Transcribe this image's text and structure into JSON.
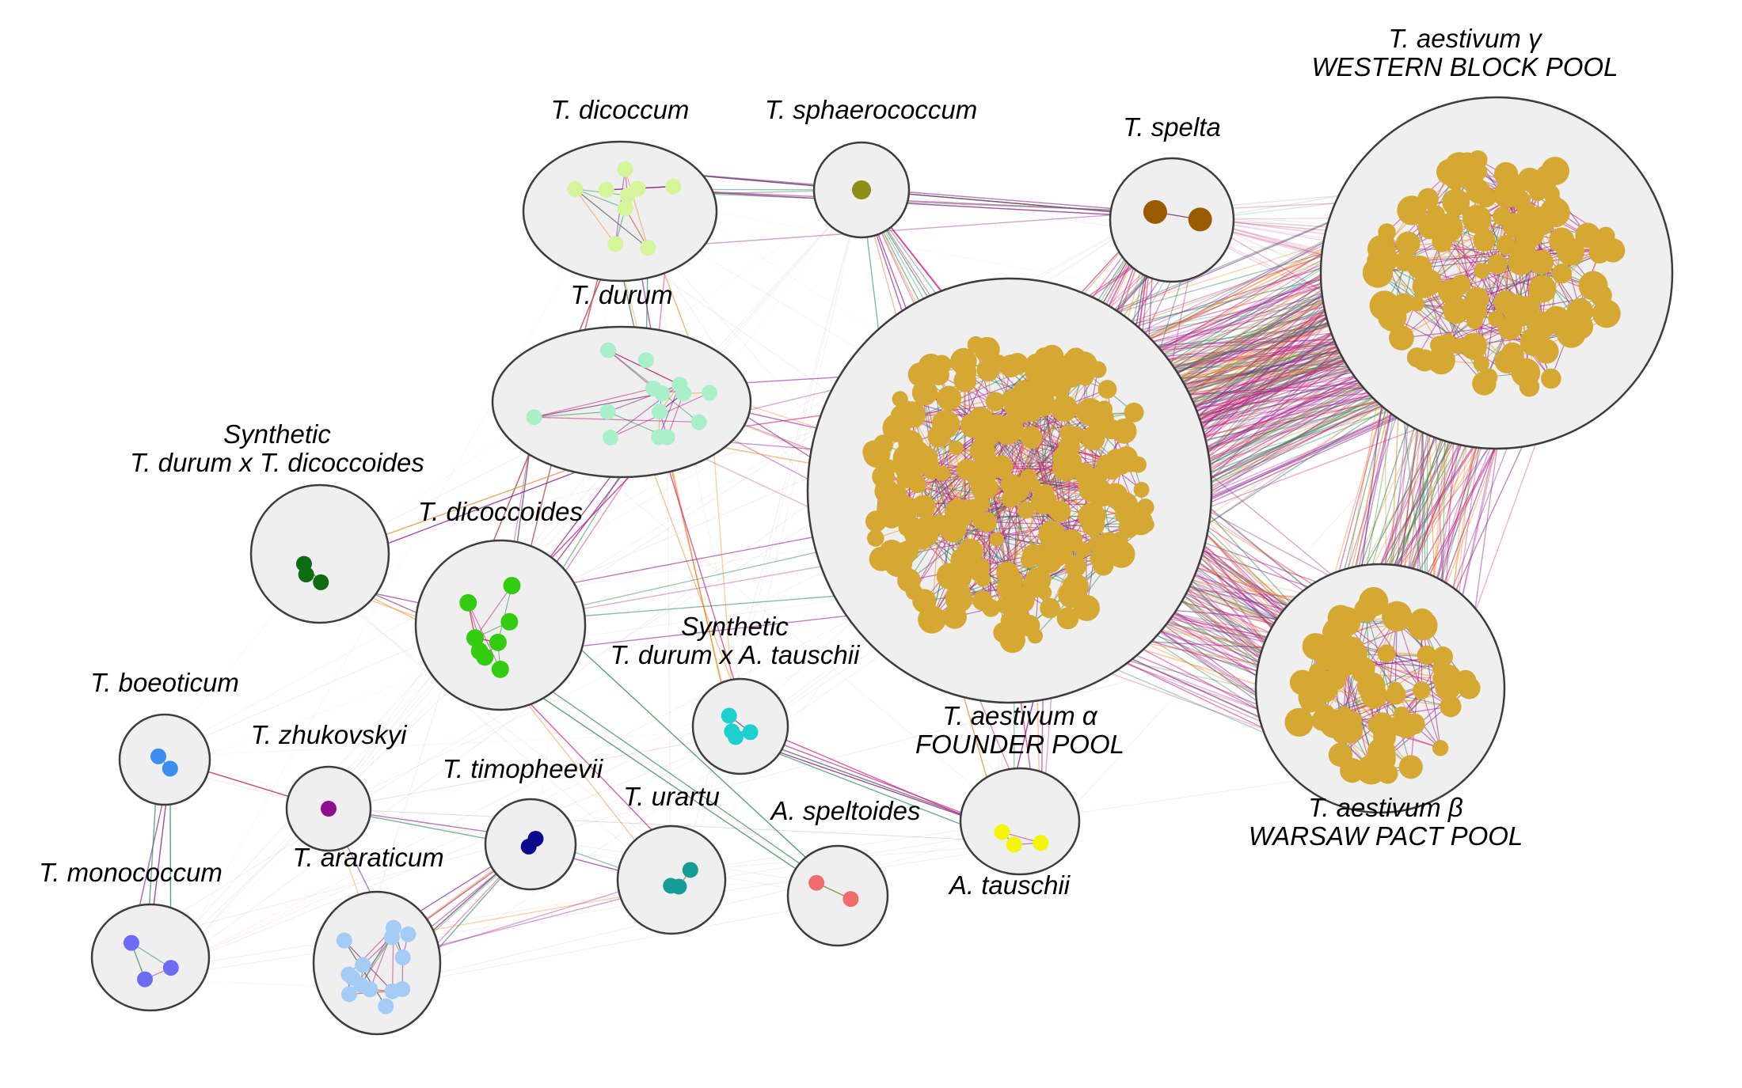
{
  "clusters": [
    {
      "id": "dicoccum",
      "lines": [
        "T. dicoccum"
      ],
      "color": "#d4f59a"
    },
    {
      "id": "sphaerococcum",
      "lines": [
        "T. sphaerococcum"
      ],
      "color": "#8c8c14"
    },
    {
      "id": "spelta",
      "lines": [
        "T. spelta"
      ],
      "color": "#9a5a00"
    },
    {
      "id": "aestivum_gamma",
      "lines": [
        "T. aestivum γ",
        "WESTERN BLOCK POOL"
      ],
      "color": "#d4a832"
    },
    {
      "id": "durum",
      "lines": [
        "T. durum"
      ],
      "color": "#a8f0c8"
    },
    {
      "id": "synth_dd",
      "lines": [
        "Synthetic",
        "T. durum x T. dicoccoides"
      ],
      "color": "#0d6b12"
    },
    {
      "id": "dicoccoides",
      "lines": [
        "T. dicoccoides"
      ],
      "color": "#33cc11"
    },
    {
      "id": "aestivum_alpha",
      "lines": [
        "T. aestivum α",
        "FOUNDER POOL"
      ],
      "color": "#d4a832"
    },
    {
      "id": "synth_da",
      "lines": [
        "Synthetic",
        "T. durum x A. tauschii"
      ],
      "color": "#1ecfcf"
    },
    {
      "id": "aestivum_beta",
      "lines": [
        "T. aestivum β",
        "WARSAW PACT POOL"
      ],
      "color": "#d4a832"
    },
    {
      "id": "boeoticum",
      "lines": [
        "T. boeoticum"
      ],
      "color": "#3a8ef0"
    },
    {
      "id": "zhukovskyi",
      "lines": [
        "T. zhukovskyi"
      ],
      "color": "#8c0f8c"
    },
    {
      "id": "timopheevii",
      "lines": [
        "T. timopheevii"
      ],
      "color": "#0a0a8c"
    },
    {
      "id": "urartu",
      "lines": [
        "T. urartu"
      ],
      "color": "#159c96"
    },
    {
      "id": "speltoides",
      "lines": [
        "A. speltoides"
      ],
      "color": "#f06c6c"
    },
    {
      "id": "tauschii",
      "lines": [
        "A. tauschii"
      ],
      "color": "#f5f50a"
    },
    {
      "id": "monococcum",
      "lines": [
        "T. monococcum"
      ],
      "color": "#6b6bf5"
    },
    {
      "id": "araraticum",
      "lines": [
        "T. araraticum"
      ],
      "color": "#a4ccf5"
    }
  ],
  "edge_colors": [
    "#8b1a8b",
    "#2e8b57",
    "#f28c28",
    "#c71585"
  ]
}
